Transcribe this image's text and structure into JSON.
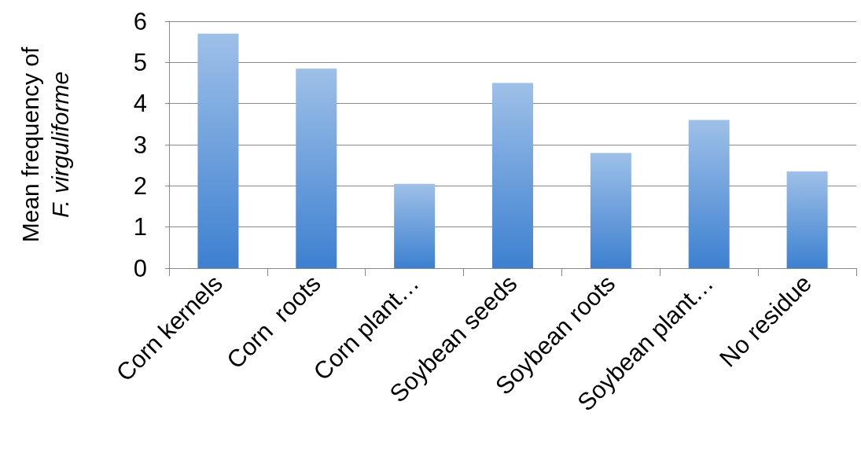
{
  "chart_data": {
    "type": "bar",
    "ylabel": "Mean frequency of\nF. virguliforme",
    "categories": [
      "Corn kernels",
      "Corn  roots",
      "Corn plant…",
      "Soybean seeds",
      "Soybean roots",
      "Soybean plant…",
      "No residue"
    ],
    "values": [
      5.7,
      4.85,
      2.05,
      4.5,
      2.8,
      3.6,
      2.35
    ],
    "color": "#3d80d0",
    "ylim": [
      0,
      6
    ],
    "yticks": [
      0,
      1,
      2,
      3,
      4,
      5,
      6
    ],
    "grid": "y"
  }
}
